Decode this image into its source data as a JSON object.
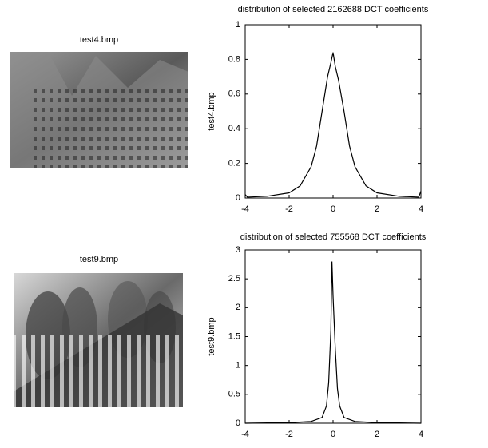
{
  "images": [
    {
      "title": "test4.bmp"
    },
    {
      "title": "test9.bmp"
    }
  ],
  "chart_data": [
    {
      "type": "line",
      "title": "distribution of selected 2162688 DCT coefficients",
      "ylabel": "test4.bmp",
      "color": "#000000",
      "x": [
        -4,
        -3.9,
        -3,
        -2,
        -1.5,
        -1,
        -0.75,
        -0.5,
        -0.25,
        -0.1,
        0,
        0.1,
        0.25,
        0.5,
        0.75,
        1,
        1.5,
        2,
        3,
        3.9,
        4
      ],
      "values": [
        0.02,
        0.005,
        0.01,
        0.03,
        0.07,
        0.18,
        0.3,
        0.5,
        0.7,
        0.78,
        0.84,
        0.76,
        0.68,
        0.5,
        0.3,
        0.18,
        0.07,
        0.03,
        0.01,
        0.005,
        0.04
      ],
      "xlim": [
        -4,
        4
      ],
      "xticks": [
        -4,
        -2,
        0,
        2,
        4
      ],
      "ylim": [
        0,
        1
      ],
      "yticks": [
        0,
        0.2,
        0.4,
        0.6,
        0.8,
        1
      ]
    },
    {
      "type": "line",
      "title": "distribution of selected 755568 DCT coefficients",
      "ylabel": "test9.bmp",
      "color": "#000000",
      "x": [
        -4,
        -2,
        -1,
        -0.5,
        -0.3,
        -0.2,
        -0.1,
        -0.05,
        0,
        0.1,
        0.2,
        0.3,
        0.5,
        1,
        2,
        4
      ],
      "values": [
        0,
        0.01,
        0.03,
        0.1,
        0.3,
        0.7,
        1.6,
        2.8,
        2.2,
        1.3,
        0.6,
        0.3,
        0.1,
        0.03,
        0.01,
        0
      ],
      "xlim": [
        -4,
        4
      ],
      "xticks": [
        -4,
        -2,
        0,
        2,
        4
      ],
      "ylim": [
        0,
        3
      ],
      "yticks": [
        0,
        0.5,
        1,
        1.5,
        2,
        2.5,
        3
      ]
    }
  ]
}
